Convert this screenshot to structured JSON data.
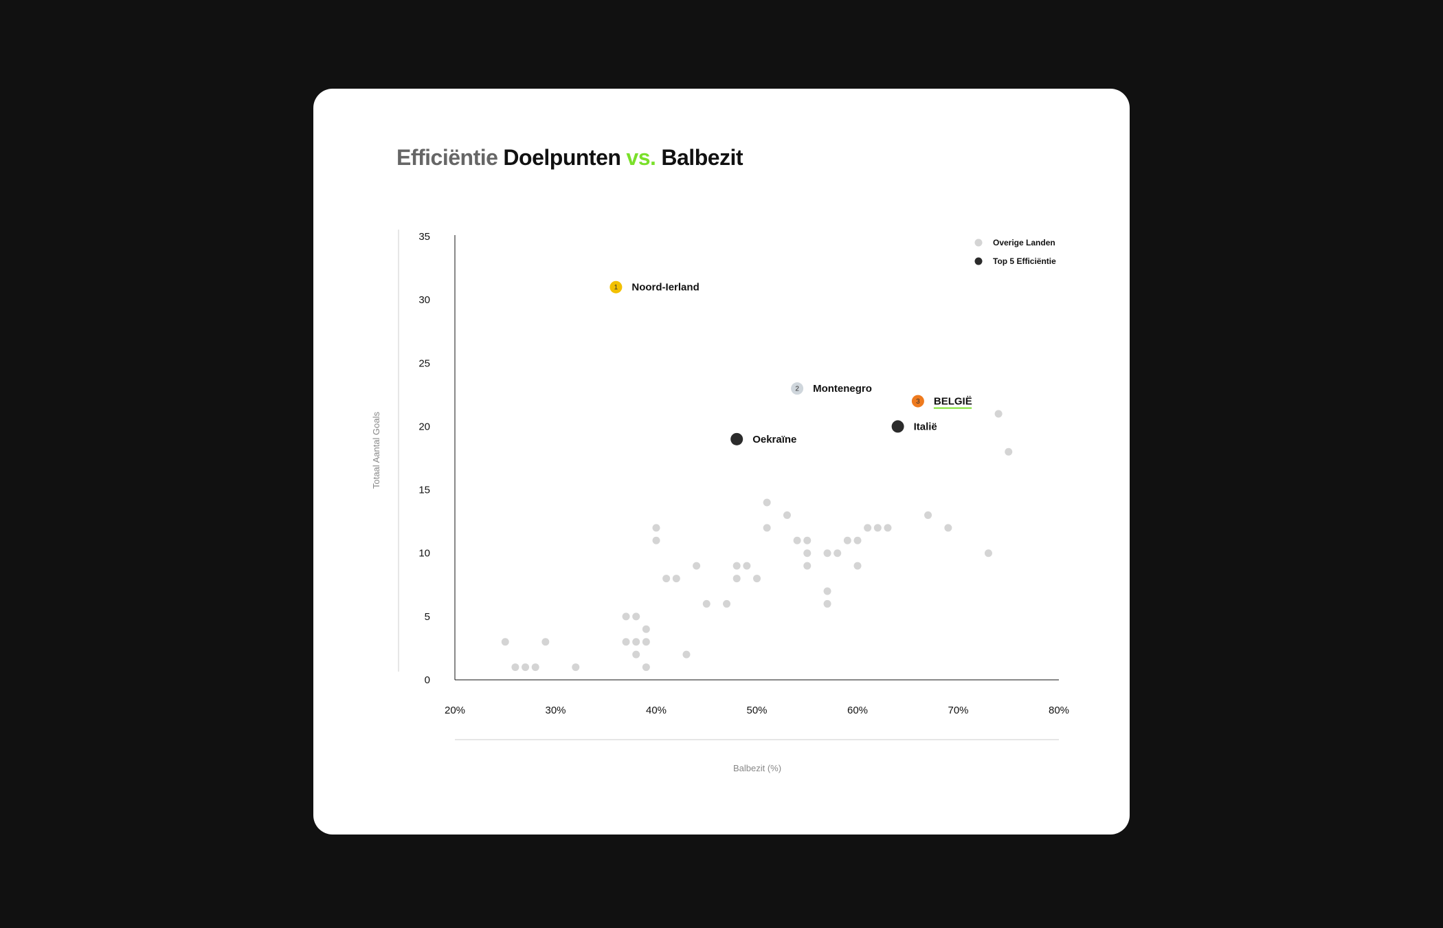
{
  "title": {
    "part1": "Efficiëntie",
    "part2": "Doelpunten",
    "part3": "vs.",
    "part4": "Balbezit"
  },
  "colors": {
    "background": "#111111",
    "card": "#ffffff",
    "other_point": "#d4d4d4",
    "top5_point": "#2b2b2b",
    "rank1": "#f2c000",
    "rank2": "#cfd6dc",
    "rank3": "#ee7a1e",
    "accent_green": "#7ae02a"
  },
  "chart_data": {
    "type": "scatter",
    "title": "Efficiëntie Doelpunten vs. Balbezit",
    "xlabel": "Balbezit (%)",
    "ylabel": "Totaal Aantal Goals",
    "xlim": [
      20,
      80
    ],
    "ylim": [
      0,
      35
    ],
    "x_ticks": [
      "20%",
      "30%",
      "40%",
      "50%",
      "60%",
      "70%",
      "80%"
    ],
    "x_tick_values": [
      20,
      30,
      40,
      50,
      60,
      70,
      80
    ],
    "y_ticks": [
      0,
      5,
      10,
      15,
      20,
      25,
      30,
      35
    ],
    "grid": false,
    "legend_position": "top-right",
    "legend": [
      {
        "label": "Overige Landen",
        "color": "#d4d4d4"
      },
      {
        "label": "Top 5 Efficiëntie",
        "color": "#2b2b2b"
      }
    ],
    "series": [
      {
        "name": "Overige Landen",
        "points": [
          [
            25,
            3
          ],
          [
            26,
            1
          ],
          [
            27,
            1
          ],
          [
            28,
            1
          ],
          [
            29,
            3
          ],
          [
            32,
            1
          ],
          [
            37,
            5
          ],
          [
            38,
            5
          ],
          [
            37,
            3
          ],
          [
            38,
            3
          ],
          [
            39,
            4
          ],
          [
            39,
            3
          ],
          [
            38,
            2
          ],
          [
            39,
            1
          ],
          [
            40,
            12
          ],
          [
            40,
            11
          ],
          [
            41,
            8
          ],
          [
            42,
            8
          ],
          [
            43,
            2
          ],
          [
            44,
            9
          ],
          [
            45,
            6
          ],
          [
            47,
            6
          ],
          [
            48,
            9
          ],
          [
            49,
            9
          ],
          [
            48,
            8
          ],
          [
            50,
            8
          ],
          [
            51,
            14
          ],
          [
            51,
            12
          ],
          [
            53,
            13
          ],
          [
            54,
            11
          ],
          [
            55,
            11
          ],
          [
            55,
            10
          ],
          [
            55,
            9
          ],
          [
            57,
            10
          ],
          [
            58,
            10
          ],
          [
            57,
            7
          ],
          [
            57,
            6
          ],
          [
            59,
            11
          ],
          [
            60,
            11
          ],
          [
            60,
            9
          ],
          [
            61,
            12
          ],
          [
            62,
            12
          ],
          [
            63,
            12
          ],
          [
            67,
            13
          ],
          [
            69,
            12
          ],
          [
            73,
            10
          ],
          [
            74,
            21
          ],
          [
            75,
            18
          ]
        ]
      },
      {
        "name": "Top 5 Efficiëntie",
        "points": [
          {
            "label": "Noord-Ierland",
            "x": 36,
            "y": 31,
            "rank": "1",
            "color": "#f2c000"
          },
          {
            "label": "Montenegro",
            "x": 54,
            "y": 23,
            "rank": "2",
            "color": "#cfd6dc"
          },
          {
            "label": "BELGIË",
            "x": 66,
            "y": 22,
            "rank": "3",
            "color": "#ee7a1e",
            "underline": true
          },
          {
            "label": "Italië",
            "x": 64,
            "y": 20,
            "rank": "",
            "color": "#2b2b2b"
          },
          {
            "label": "Oekraïne",
            "x": 48,
            "y": 19,
            "rank": "",
            "color": "#2b2b2b"
          }
        ]
      }
    ]
  }
}
